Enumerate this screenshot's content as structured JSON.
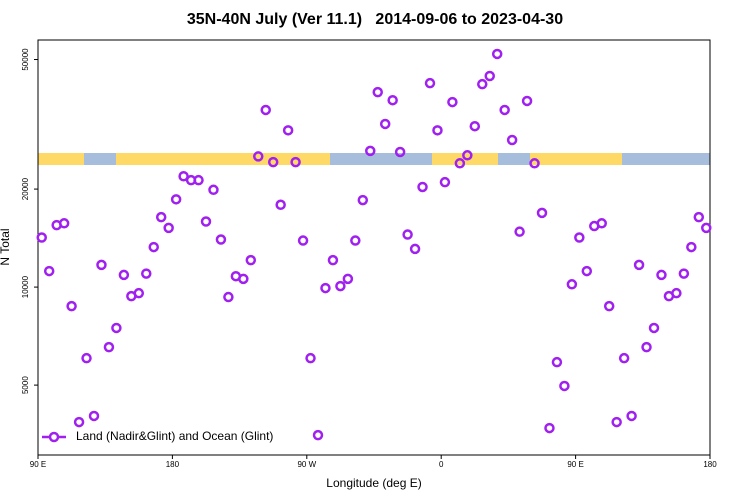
{
  "chart_data": {
    "type": "scatter",
    "title": "35N-40N July (Ver 11.1)   2014-09-06 to 2023-04-30",
    "x_label": "Longitude (deg E)",
    "y_label": "N Total",
    "xlim": [
      90,
      540
    ],
    "xticks": [
      {
        "value": 90,
        "label": "90 E"
      },
      180,
      {
        "value": 270,
        "label": "90 W"
      },
      {
        "value": 360,
        "label": "0"
      },
      {
        "value": 450,
        "label": "90 E"
      },
      {
        "value": 540,
        "label": "180"
      }
    ],
    "ylim": [
      3050,
      57400
    ],
    "y_scale": "log",
    "yticks": [
      5000,
      10000,
      20000,
      50000
    ],
    "legend": "bottom left",
    "series": [
      {
        "name": "Land (Nadir&Glint) and Ocean (Glint)",
        "color": "#a020f0",
        "x": [
          92.5,
          97.5,
          102.5,
          107.5,
          112.5,
          117.5,
          122.5,
          127.5,
          132.5,
          137.5,
          142.5,
          147.5,
          152.5,
          157.5,
          162.5,
          167.5,
          172.5,
          177.5,
          182.5,
          187.5,
          192.5,
          197.5,
          202.5,
          207.5,
          212.5,
          217.5,
          222.5,
          227.5,
          232.5,
          237.5,
          242.5,
          247.5,
          252.5,
          257.5,
          262.5,
          267.5,
          272.5,
          277.5,
          282.5,
          287.5,
          292.5,
          297.5,
          302.5,
          307.5,
          312.5,
          317.5,
          322.5,
          327.5,
          332.5,
          337.5,
          342.5,
          347.5,
          352.5,
          357.5,
          362.5,
          367.5,
          372.5,
          377.5,
          382.5,
          387.5,
          392.5,
          397.5,
          402.5,
          407.5,
          412.5,
          417.5,
          422.5,
          427.5,
          432.5,
          437.5,
          442.5,
          447.5,
          452.5,
          457.5,
          462.5,
          467.5,
          472.5,
          477.5,
          482.5,
          487.5,
          492.5,
          497.5,
          502.5,
          507.5,
          512.5,
          517.5,
          522.5,
          527.5,
          532.5,
          537.5
        ],
        "values": [
          14200,
          11200,
          15500,
          15700,
          8740,
          3850,
          6050,
          4020,
          11700,
          6540,
          7490,
          10900,
          9380,
          9580,
          11000,
          13270,
          16400,
          15200,
          18600,
          21900,
          21300,
          21300,
          15900,
          19900,
          14000,
          9320,
          10800,
          10600,
          12100,
          25200,
          35000,
          24200,
          17900,
          30300,
          24200,
          13900,
          6050,
          3510,
          9930,
          12100,
          10070,
          10600,
          13900,
          18500,
          26200,
          39700,
          31700,
          37500,
          26000,
          14500,
          13100,
          20300,
          42300,
          30300,
          21000,
          37000,
          24000,
          25400,
          31200,
          42000,
          44500,
          52000,
          35000,
          28300,
          14800,
          37300,
          24000,
          16900,
          3690,
          5880,
          4970,
          10200,
          14200,
          11200,
          15400,
          15700,
          8740,
          3850,
          6050,
          4020,
          11700,
          6540,
          7490,
          10900,
          9380,
          9580,
          11000,
          13270,
          16400,
          15200
        ]
      }
    ]
  }
}
